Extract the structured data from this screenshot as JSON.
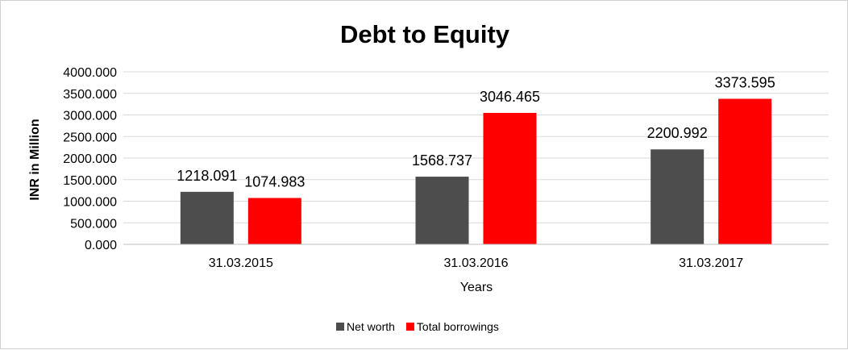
{
  "chart_data": {
    "type": "bar",
    "title": "Debt to Equity",
    "xlabel": "Years",
    "ylabel": "INR in Million",
    "categories": [
      "31.03.2015",
      "31.03.2016",
      "31.03.2017"
    ],
    "series": [
      {
        "name": "Net worth",
        "values": [
          1218.091,
          1568.737,
          2200.992
        ],
        "value_labels": [
          "1218.091",
          "1568.737",
          "2200.992"
        ],
        "color": "#4d4d4d"
      },
      {
        "name": "Total borrowings",
        "values": [
          1074.983,
          3046.465,
          3373.595
        ],
        "value_labels": [
          "1074.983",
          "3046.465",
          "3373.595"
        ],
        "color": "#ff0000"
      }
    ],
    "ylim": [
      0,
      4000
    ],
    "yticks": [
      0,
      500,
      1000,
      1500,
      2000,
      2500,
      3000,
      3500,
      4000
    ],
    "ytick_labels": [
      "0.000",
      "500.000",
      "1000.000",
      "1500.000",
      "2000.000",
      "2500.000",
      "3000.000",
      "3500.000",
      "4000.000"
    ],
    "grid": true,
    "legend_position": "bottom"
  }
}
